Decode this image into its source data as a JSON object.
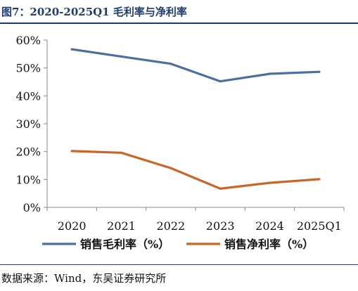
{
  "header": {
    "title": "图7：2020-2025Q1 毛利率与净利率"
  },
  "footer": {
    "source": "数据来源：Wind，东吴证券研究所"
  },
  "chart_data": {
    "type": "line",
    "categories": [
      "2020",
      "2021",
      "2022",
      "2023",
      "2024",
      "2025Q1"
    ],
    "ylim": [
      0,
      60
    ],
    "yticks": [
      0,
      10,
      20,
      30,
      40,
      50,
      60
    ],
    "ytick_labels": [
      "0%",
      "10%",
      "20%",
      "30%",
      "40%",
      "50%",
      "60%"
    ],
    "grid": false,
    "legend_position": "bottom",
    "series": [
      {
        "name": "销售毛利率（%）",
        "color": "#4a6fa0",
        "values": [
          56.7,
          54.1,
          51.5,
          45.2,
          47.9,
          48.6
        ]
      },
      {
        "name": "销售净利率（%）",
        "color": "#c8662a",
        "values": [
          20.2,
          19.6,
          14.1,
          6.7,
          8.8,
          10.1
        ]
      }
    ]
  }
}
